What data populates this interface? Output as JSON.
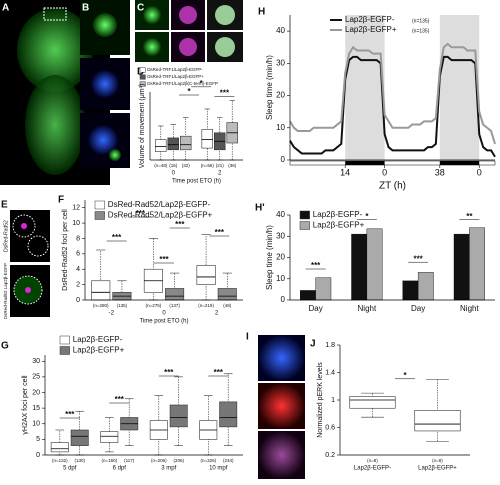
{
  "image_panels": [
    "A",
    "B",
    "C",
    "E",
    "I"
  ],
  "image_texts": [
    "DsRed-Rad52",
    "DsRed-Rad52 Lap2β-EGFP"
  ],
  "chart_data": [
    {
      "type": "box",
      "label": "D",
      "y_label": "Volume of movement (μm³)",
      "x_label": "Time post ETO (h)",
      "ylim": [
        0,
        8
      ],
      "categories": [
        "0",
        "2"
      ],
      "series": [
        {
          "name": "DsRed-TRF1/Lap2β-EGFP-",
          "color": "#ffffff",
          "boxes": [
            [
              0,
              1,
              1.6,
              2.4,
              4
            ],
            [
              0,
              1.4,
              2.4,
              3.6,
              6
            ]
          ]
        },
        {
          "name": "DsRed-TRF1/Lap2β-EGFP+",
          "color": "#555555",
          "boxes": [
            [
              0,
              1.2,
              1.8,
              2.6,
              4.2
            ],
            [
              0,
              1.2,
              2.2,
              3.2,
              5
            ]
          ]
        },
        {
          "name": "DsRed-TRF1/Lap2β(C-term)-EGFP",
          "color": "#bbbbbb",
          "boxes": [
            [
              0,
              1.2,
              1.8,
              2.8,
              5
            ],
            [
              0,
              2,
              3.2,
              4.4,
              7
            ]
          ]
        }
      ],
      "n_labels": [
        [
          "(n=48)",
          "(16)",
          "(32)"
        ],
        [
          "(n=56)",
          "(21)",
          "(36)"
        ]
      ],
      "annotations": [
        "*",
        "*",
        "***"
      ]
    },
    {
      "type": "box",
      "label": "F",
      "y_label": "DsRed-Rad52 foci per cell",
      "x_label": "Time post ETO (h)",
      "ylim": [
        0,
        13
      ],
      "yticks": [
        0,
        2,
        4,
        6,
        8,
        10,
        12
      ],
      "categories": [
        "-2",
        "0",
        "2"
      ],
      "series": [
        {
          "name": "DsRed-Rad52/Lap2β-EGFP-",
          "color": "#ffffff",
          "boxes": [
            [
              0,
              0,
              1,
              2.5,
              6.5
            ],
            [
              0,
              1,
              2.5,
              4,
              8
            ],
            [
              0,
              2,
              3,
              4.5,
              8.5
            ]
          ]
        },
        {
          "name": "DsRed-Rad52/Lap2β-EGFP+",
          "color": "#888888",
          "boxes": [
            [
              0,
              0,
              0.5,
              1,
              2.5
            ],
            [
              0,
              0,
              0.5,
              1.5,
              3.5
            ],
            [
              0,
              0,
              0.5,
              1.5,
              3.5
            ]
          ]
        }
      ],
      "n_labels": [
        [
          "(n=280)",
          "(135)"
        ],
        [
          "(n=275)",
          "(137)"
        ],
        [
          "(n=219)",
          "(48)"
        ]
      ],
      "annotations": [
        "***",
        "***",
        "***",
        "***",
        "***"
      ]
    },
    {
      "type": "box",
      "label": "G",
      "y_label": "γH2AX foci per cell",
      "ylim": [
        0,
        32
      ],
      "yticks": [
        0,
        5,
        10,
        15,
        20,
        25,
        30
      ],
      "categories": [
        "5 dpf",
        "6 dpf",
        "3 mpf",
        "10 mpf"
      ],
      "series": [
        {
          "name": "Lap2β-EGFP-",
          "color": "#ffffff",
          "boxes": [
            [
              0,
              1,
              2,
              4,
              8
            ],
            [
              1,
              4,
              6,
              7.5,
              12
            ],
            [
              0,
              5,
              8,
              11,
              19
            ],
            [
              0,
              5,
              8,
              11,
              19
            ]
          ]
        },
        {
          "name": "Lap2β-EGFP+",
          "color": "#777777",
          "boxes": [
            [
              0,
              3,
              6,
              8,
              14
            ],
            [
              3,
              8,
              10,
              12,
              18
            ],
            [
              3,
              9,
              12,
              16,
              25
            ],
            [
              3,
              9,
              12,
              17,
              26
            ]
          ]
        }
      ],
      "n_labels": [
        [
          "(n=132)",
          "(130)"
        ],
        [
          "(n=150)",
          "(117)"
        ],
        [
          "(n=206)",
          "(206)"
        ],
        [
          "(n=326)",
          "(234)"
        ]
      ],
      "annotations": [
        "***",
        "***",
        "***",
        "***"
      ]
    },
    {
      "type": "line",
      "label": "H",
      "y_label": "Sleep time (min/h)",
      "x_label": "ZT (h)",
      "xlim": [
        0,
        52
      ],
      "ylim": [
        0,
        45
      ],
      "yticks": [
        0,
        10,
        20,
        30,
        40
      ],
      "xticks": [
        14,
        {
          "value": 24,
          "label": "0"
        },
        38,
        {
          "value": 48,
          "label": "0"
        }
      ],
      "shaded": [
        [
          14,
          24
        ],
        [
          38,
          48
        ]
      ],
      "x": [
        0,
        1,
        2,
        3,
        4,
        5,
        6,
        7,
        8,
        9,
        10,
        11,
        12,
        13,
        14,
        15,
        16,
        17,
        18,
        19,
        20,
        21,
        22,
        23,
        24,
        25,
        26,
        27,
        28,
        29,
        30,
        31,
        32,
        33,
        34,
        35,
        36,
        37,
        38,
        39,
        40,
        41,
        42,
        43,
        44,
        45,
        46,
        47,
        48,
        49,
        50,
        51,
        52
      ],
      "series": [
        {
          "name": "Lap2β-EGFP-",
          "n_label": "(n=135)",
          "color": "#111111",
          "values": [
            6,
            4,
            3,
            2,
            2,
            2,
            2,
            2,
            2,
            3,
            3,
            3,
            4,
            5,
            25,
            31,
            32,
            32,
            31,
            31,
            31,
            31,
            31,
            30,
            8,
            4,
            3,
            3,
            3,
            3,
            3,
            3,
            3,
            3,
            3,
            4,
            4,
            5,
            26,
            32,
            32,
            31,
            31,
            31,
            31,
            31,
            31,
            30,
            8,
            4,
            3,
            3,
            1
          ]
        },
        {
          "name": "Lap2β-EGFP+",
          "n_label": "(n=135)",
          "color": "#999999",
          "values": [
            12,
            10,
            9,
            9,
            9,
            9,
            10,
            10,
            10,
            10,
            10,
            10,
            11,
            12,
            27,
            33,
            35,
            34,
            34,
            34,
            34,
            33,
            33,
            33,
            14,
            12,
            10,
            10,
            10,
            10,
            10,
            11,
            11,
            11,
            12,
            12,
            12,
            13,
            28,
            35,
            36,
            35,
            35,
            35,
            35,
            34,
            34,
            34,
            15,
            11,
            10,
            9,
            5
          ]
        }
      ]
    },
    {
      "type": "bar",
      "label": "H'",
      "y_label": "Sleep time (min/h)",
      "ylim": [
        0,
        40
      ],
      "yticks": [
        0,
        10,
        20,
        30,
        40
      ],
      "categories": [
        "Day",
        "Night",
        "Day",
        "Night"
      ],
      "series": [
        {
          "name": "Lap2β-EGFP-",
          "color": "#111111",
          "values": [
            4.5,
            31,
            9,
            31
          ]
        },
        {
          "name": "Lap2β-EGFP+",
          "color": "#aaaaaa",
          "values": [
            10.5,
            33.5,
            13,
            34
          ]
        }
      ],
      "annotations": [
        "***",
        "*",
        "***",
        "**"
      ]
    },
    {
      "type": "box",
      "label": "J",
      "y_label": "Normalized pERK levels",
      "ylim": [
        0.2,
        1.8
      ],
      "yticks": [
        0.2,
        0.6,
        1,
        1.4,
        1.8
      ],
      "categories": [
        "Lap2β-EGFP-",
        "Lap2β-EGFP+"
      ],
      "series": [
        {
          "color": "#ffffff",
          "boxes": [
            [
              0.75,
              0.88,
              1.0,
              1.05,
              1.1
            ],
            [
              0.4,
              0.55,
              0.65,
              0.85,
              1.3
            ]
          ]
        }
      ],
      "n_labels": [
        [
          "(n=8)"
        ],
        [
          "(n=8)"
        ]
      ],
      "annotations": [
        "*"
      ]
    }
  ]
}
